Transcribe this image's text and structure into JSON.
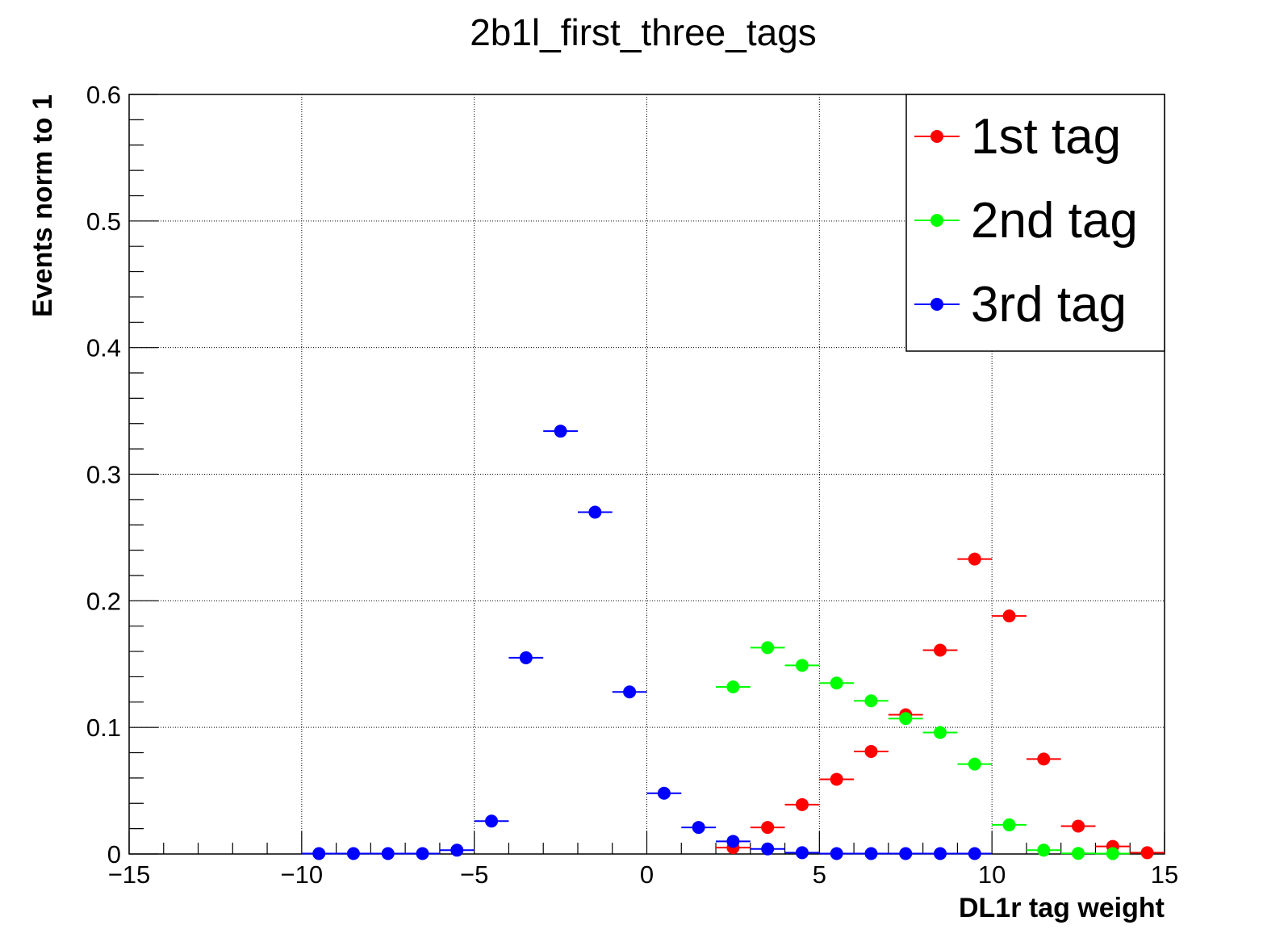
{
  "chart_data": {
    "type": "scatter",
    "title": "2b1l_first_three_tags",
    "xlabel": "DL1r tag weight",
    "ylabel": "Events norm to 1",
    "xlim": [
      -15,
      15
    ],
    "ylim": [
      0,
      0.6
    ],
    "x_ticks": [
      -15,
      -10,
      -5,
      0,
      5,
      10,
      15
    ],
    "x_tick_labels": [
      "−15",
      "−10",
      "−5",
      "0",
      "5",
      "10",
      "15"
    ],
    "y_ticks": [
      0,
      0.1,
      0.2,
      0.3,
      0.4,
      0.5,
      0.6
    ],
    "y_tick_labels": [
      "0",
      "0.1",
      "0.2",
      "0.3",
      "0.4",
      "0.5",
      "0.6"
    ],
    "grid": true,
    "legend_position": "top-right",
    "bin_width": 1,
    "series": [
      {
        "name": "1st tag",
        "color": "#ff0000",
        "x": [
          2.5,
          3.5,
          4.5,
          5.5,
          6.5,
          7.5,
          8.5,
          9.5,
          10.5,
          11.5,
          12.5,
          13.5,
          14.5
        ],
        "values": [
          0.005,
          0.021,
          0.039,
          0.059,
          0.081,
          0.11,
          0.161,
          0.233,
          0.188,
          0.075,
          0.022,
          0.006,
          0.001
        ]
      },
      {
        "name": "2nd tag",
        "color": "#00ff00",
        "x": [
          2.5,
          3.5,
          4.5,
          5.5,
          6.5,
          7.5,
          8.5,
          9.5,
          10.5,
          11.5,
          12.5,
          13.5
        ],
        "values": [
          0.132,
          0.163,
          0.149,
          0.135,
          0.121,
          0.107,
          0.096,
          0.071,
          0.023,
          0.003,
          0.0005,
          0.0003
        ]
      },
      {
        "name": "3rd tag",
        "color": "#0000ff",
        "x": [
          -9.5,
          -8.5,
          -7.5,
          -6.5,
          -5.5,
          -4.5,
          -3.5,
          -2.5,
          -1.5,
          -0.5,
          0.5,
          1.5,
          2.5,
          3.5,
          4.5,
          5.5,
          6.5,
          7.5,
          8.5,
          9.5
        ],
        "values": [
          0.0003,
          0.0003,
          0.0003,
          0.0003,
          0.003,
          0.026,
          0.155,
          0.334,
          0.27,
          0.128,
          0.048,
          0.021,
          0.01,
          0.004,
          0.001,
          0.0003,
          0.0003,
          0.0003,
          0.0003,
          0.0003
        ]
      }
    ]
  }
}
